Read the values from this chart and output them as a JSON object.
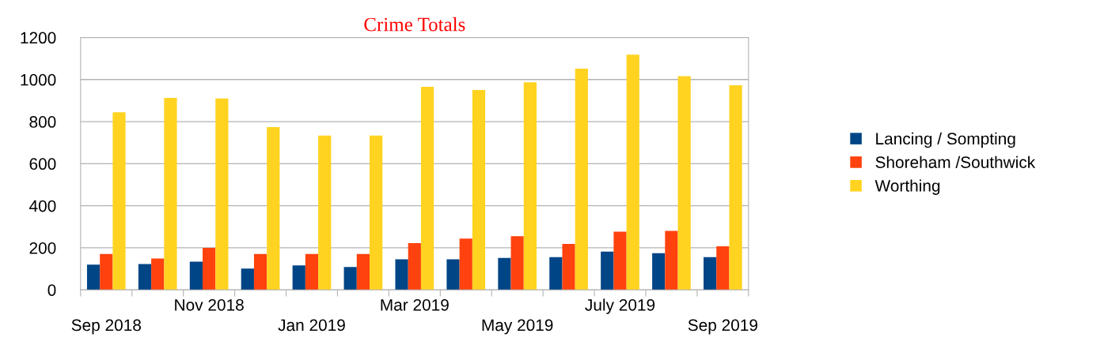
{
  "chart_data": {
    "type": "bar",
    "title": "Crime Totals",
    "categories": [
      "Sep 2018",
      null,
      "Nov 2018",
      null,
      "Jan 2019",
      null,
      "Mar 2019",
      null,
      "May 2019",
      null,
      "July 2019",
      null,
      "Sep 2019"
    ],
    "series": [
      {
        "name": "Lancing / Sompting",
        "color": "#004586",
        "values": [
          120,
          123,
          134,
          101,
          116,
          109,
          145,
          145,
          152,
          156,
          182,
          174,
          156
        ]
      },
      {
        "name": "Shoreham /Southwick",
        "color": "#ff420e",
        "values": [
          171,
          149,
          200,
          171,
          171,
          171,
          222,
          244,
          255,
          218,
          277,
          280,
          207
        ]
      },
      {
        "name": "Worthing",
        "color": "#ffd320",
        "values": [
          844,
          913,
          910,
          774,
          734,
          734,
          965,
          950,
          987,
          1052,
          1118,
          1016,
          973
        ]
      }
    ],
    "ylim": [
      0,
      1200
    ],
    "yticks": [
      0,
      200,
      400,
      600,
      800,
      1000,
      1200
    ],
    "grid": "y",
    "legend": "right"
  }
}
